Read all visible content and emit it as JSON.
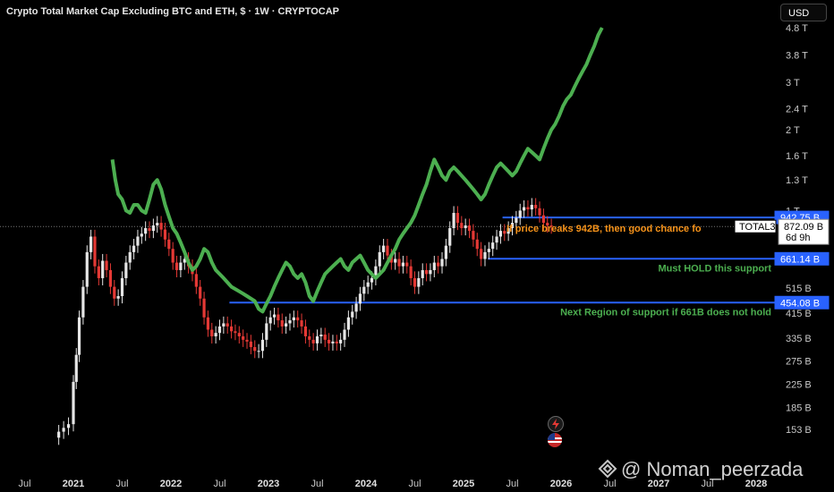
{
  "header": {
    "title": "Crypto Total Market Cap Excluding BTC and ETH, $ · 1W · CRYPTOCAP"
  },
  "currency_button": "USD",
  "watermark": "@ Noman_peerzada",
  "annotations": {
    "breakout_text": "If price breaks 942B, then good chance fo",
    "support_text": "Must HOLD this support",
    "next_support_text": "Next Region of support if 661B does not hold"
  },
  "price_tags": {
    "level_942": "942.75 B",
    "symbol": "TOTAL3",
    "price": "872.09 B",
    "countdown": "6d 9h",
    "level_661": "661.14 B",
    "level_454": "454.08 B"
  },
  "colors": {
    "background": "#000000",
    "overlay_green": "#4caf50",
    "candle_up": "#e6e6e6",
    "candle_down": "#e53935",
    "level_line": "#2962ff",
    "annotation_orange": "#f7931a",
    "annotation_green": "#4caf50"
  },
  "chart_data": {
    "type": "line",
    "title": "Crypto Total Market Cap Excluding BTC and ETH, $ · 1W · CRYPTOCAP",
    "y_scale": "log",
    "y_unit": "USD",
    "y_ticks": [
      "4.8 T",
      "3.8 T",
      "3 T",
      "2.4 T",
      "2 T",
      "1.6 T",
      "1.3 T",
      "1 T",
      "515 B",
      "415 B",
      "335 B",
      "275 B",
      "225 B",
      "185 B",
      "153 B"
    ],
    "y_tick_values": [
      4800,
      3800,
      3000,
      2400,
      2000,
      1600,
      1300,
      1000,
      515,
      415,
      335,
      275,
      225,
      185,
      153
    ],
    "x_ticks": [
      "Jul",
      "2021",
      "Jul",
      "2022",
      "Jul",
      "2023",
      "Jul",
      "2024",
      "Jul",
      "2025",
      "Jul",
      "2026",
      "Jul",
      "2027",
      "Jul",
      "2028"
    ],
    "x_tick_times": [
      2020.5,
      2021.0,
      2021.5,
      2022.0,
      2022.5,
      2023.0,
      2023.5,
      2024.0,
      2024.5,
      2025.0,
      2025.5,
      2026.0,
      2026.5,
      2027.0,
      2027.5,
      2028.0
    ],
    "horizontal_levels": [
      {
        "value": 942.75,
        "label": "942.75 B",
        "start": 2025.4
      },
      {
        "value": 661.14,
        "label": "661.14 B",
        "start": 2025.25
      },
      {
        "value": 454.08,
        "label": "454.08 B",
        "start": 2022.6
      }
    ],
    "last_price": 872.09,
    "series": [
      {
        "kind": "candles",
        "points": [
          [
            2020.85,
            150
          ],
          [
            2020.9,
            155
          ],
          [
            2020.95,
            160
          ],
          [
            2021.0,
            230
          ],
          [
            2021.03,
            290
          ],
          [
            2021.06,
            400
          ],
          [
            2021.1,
            520
          ],
          [
            2021.14,
            700
          ],
          [
            2021.18,
            800
          ],
          [
            2021.22,
            620
          ],
          [
            2021.26,
            560
          ],
          [
            2021.3,
            650
          ],
          [
            2021.34,
            600
          ],
          [
            2021.38,
            520
          ],
          [
            2021.42,
            470
          ],
          [
            2021.46,
            480
          ],
          [
            2021.5,
            560
          ],
          [
            2021.54,
            640
          ],
          [
            2021.58,
            700
          ],
          [
            2021.62,
            740
          ],
          [
            2021.66,
            800
          ],
          [
            2021.7,
            820
          ],
          [
            2021.74,
            860
          ],
          [
            2021.78,
            840
          ],
          [
            2021.82,
            880
          ],
          [
            2021.86,
            900
          ],
          [
            2021.9,
            850
          ],
          [
            2021.94,
            780
          ],
          [
            2021.98,
            720
          ],
          [
            2022.02,
            640
          ],
          [
            2022.06,
            600
          ],
          [
            2022.1,
            640
          ],
          [
            2022.14,
            660
          ],
          [
            2022.18,
            620
          ],
          [
            2022.22,
            580
          ],
          [
            2022.26,
            520
          ],
          [
            2022.3,
            470
          ],
          [
            2022.34,
            400
          ],
          [
            2022.38,
            360
          ],
          [
            2022.42,
            340
          ],
          [
            2022.46,
            350
          ],
          [
            2022.5,
            370
          ],
          [
            2022.54,
            380
          ],
          [
            2022.58,
            370
          ],
          [
            2022.62,
            355
          ],
          [
            2022.66,
            350
          ],
          [
            2022.7,
            340
          ],
          [
            2022.74,
            330
          ],
          [
            2022.78,
            325
          ],
          [
            2022.82,
            310
          ],
          [
            2022.86,
            300
          ],
          [
            2022.9,
            300
          ],
          [
            2022.94,
            330
          ],
          [
            2022.98,
            380
          ],
          [
            2023.02,
            400
          ],
          [
            2023.06,
            410
          ],
          [
            2023.1,
            390
          ],
          [
            2023.14,
            370
          ],
          [
            2023.18,
            380
          ],
          [
            2023.22,
            390
          ],
          [
            2023.26,
            400
          ],
          [
            2023.3,
            390
          ],
          [
            2023.34,
            370
          ],
          [
            2023.38,
            340
          ],
          [
            2023.42,
            330
          ],
          [
            2023.46,
            320
          ],
          [
            2023.5,
            340
          ],
          [
            2023.54,
            345
          ],
          [
            2023.58,
            330
          ],
          [
            2023.62,
            320
          ],
          [
            2023.66,
            325
          ],
          [
            2023.7,
            320
          ],
          [
            2023.74,
            330
          ],
          [
            2023.78,
            360
          ],
          [
            2023.82,
            400
          ],
          [
            2023.86,
            420
          ],
          [
            2023.9,
            450
          ],
          [
            2023.94,
            490
          ],
          [
            2023.98,
            520
          ],
          [
            2024.02,
            540
          ],
          [
            2024.06,
            560
          ],
          [
            2024.1,
            620
          ],
          [
            2024.14,
            700
          ],
          [
            2024.18,
            740
          ],
          [
            2024.22,
            680
          ],
          [
            2024.26,
            640
          ],
          [
            2024.3,
            660
          ],
          [
            2024.34,
            620
          ],
          [
            2024.38,
            640
          ],
          [
            2024.42,
            620
          ],
          [
            2024.46,
            560
          ],
          [
            2024.5,
            520
          ],
          [
            2024.54,
            560
          ],
          [
            2024.58,
            600
          ],
          [
            2024.62,
            580
          ],
          [
            2024.66,
            600
          ],
          [
            2024.7,
            640
          ],
          [
            2024.74,
            620
          ],
          [
            2024.78,
            660
          ],
          [
            2024.82,
            740
          ],
          [
            2024.86,
            860
          ],
          [
            2024.9,
            980
          ],
          [
            2024.94,
            900
          ],
          [
            2024.98,
            860
          ],
          [
            2025.02,
            880
          ],
          [
            2025.06,
            840
          ],
          [
            2025.1,
            780
          ],
          [
            2025.14,
            720
          ],
          [
            2025.18,
            660
          ],
          [
            2025.22,
            700
          ],
          [
            2025.26,
            720
          ],
          [
            2025.3,
            760
          ],
          [
            2025.34,
            800
          ],
          [
            2025.38,
            840
          ],
          [
            2025.42,
            820
          ],
          [
            2025.46,
            860
          ],
          [
            2025.5,
            900
          ],
          [
            2025.54,
            940
          ],
          [
            2025.58,
            1000
          ],
          [
            2025.62,
            1030
          ],
          [
            2025.66,
            1010
          ],
          [
            2025.7,
            1050
          ],
          [
            2025.74,
            1020
          ],
          [
            2025.78,
            960
          ],
          [
            2025.82,
            900
          ],
          [
            2025.86,
            880
          ],
          [
            2025.9,
            872
          ]
        ]
      },
      {
        "kind": "line",
        "name": "",
        "points": [
          [
            2021.4,
            1550
          ],
          [
            2021.43,
            1300
          ],
          [
            2021.46,
            1150
          ],
          [
            2021.5,
            1100
          ],
          [
            2021.54,
            1000
          ],
          [
            2021.58,
            980
          ],
          [
            2021.62,
            1050
          ],
          [
            2021.66,
            1050
          ],
          [
            2021.7,
            1000
          ],
          [
            2021.74,
            980
          ],
          [
            2021.78,
            1100
          ],
          [
            2021.82,
            1250
          ],
          [
            2021.86,
            1300
          ],
          [
            2021.9,
            1200
          ],
          [
            2021.94,
            1050
          ],
          [
            2021.98,
            950
          ],
          [
            2022.02,
            860
          ],
          [
            2022.06,
            820
          ],
          [
            2022.1,
            760
          ],
          [
            2022.14,
            700
          ],
          [
            2022.18,
            640
          ],
          [
            2022.22,
            600
          ],
          [
            2022.26,
            620
          ],
          [
            2022.3,
            660
          ],
          [
            2022.34,
            720
          ],
          [
            2022.38,
            700
          ],
          [
            2022.42,
            640
          ],
          [
            2022.46,
            600
          ],
          [
            2022.5,
            580
          ],
          [
            2022.54,
            560
          ],
          [
            2022.58,
            540
          ],
          [
            2022.62,
            520
          ],
          [
            2022.66,
            510
          ],
          [
            2022.7,
            500
          ],
          [
            2022.74,
            490
          ],
          [
            2022.78,
            480
          ],
          [
            2022.82,
            470
          ],
          [
            2022.86,
            460
          ],
          [
            2022.9,
            430
          ],
          [
            2022.94,
            420
          ],
          [
            2022.98,
            450
          ],
          [
            2023.02,
            480
          ],
          [
            2023.06,
            520
          ],
          [
            2023.1,
            560
          ],
          [
            2023.14,
            600
          ],
          [
            2023.18,
            640
          ],
          [
            2023.22,
            620
          ],
          [
            2023.26,
            580
          ],
          [
            2023.3,
            560
          ],
          [
            2023.34,
            580
          ],
          [
            2023.38,
            540
          ],
          [
            2023.42,
            480
          ],
          [
            2023.46,
            460
          ],
          [
            2023.5,
            500
          ],
          [
            2023.54,
            540
          ],
          [
            2023.58,
            580
          ],
          [
            2023.62,
            600
          ],
          [
            2023.66,
            620
          ],
          [
            2023.7,
            640
          ],
          [
            2023.74,
            660
          ],
          [
            2023.78,
            620
          ],
          [
            2023.82,
            600
          ],
          [
            2023.86,
            640
          ],
          [
            2023.9,
            660
          ],
          [
            2023.94,
            680
          ],
          [
            2023.98,
            640
          ],
          [
            2024.02,
            600
          ],
          [
            2024.06,
            580
          ],
          [
            2024.1,
            560
          ],
          [
            2024.14,
            580
          ],
          [
            2024.18,
            600
          ],
          [
            2024.22,
            640
          ],
          [
            2024.26,
            680
          ],
          [
            2024.3,
            720
          ],
          [
            2024.34,
            780
          ],
          [
            2024.38,
            820
          ],
          [
            2024.42,
            860
          ],
          [
            2024.46,
            900
          ],
          [
            2024.5,
            960
          ],
          [
            2024.54,
            1050
          ],
          [
            2024.58,
            1150
          ],
          [
            2024.62,
            1250
          ],
          [
            2024.66,
            1400
          ],
          [
            2024.7,
            1550
          ],
          [
            2024.74,
            1450
          ],
          [
            2024.78,
            1350
          ],
          [
            2024.82,
            1300
          ],
          [
            2024.86,
            1400
          ],
          [
            2024.9,
            1450
          ],
          [
            2024.94,
            1400
          ],
          [
            2024.98,
            1350
          ],
          [
            2025.02,
            1300
          ],
          [
            2025.06,
            1250
          ],
          [
            2025.1,
            1200
          ],
          [
            2025.14,
            1150
          ],
          [
            2025.18,
            1100
          ],
          [
            2025.22,
            1150
          ],
          [
            2025.26,
            1250
          ],
          [
            2025.3,
            1350
          ],
          [
            2025.34,
            1450
          ],
          [
            2025.38,
            1500
          ],
          [
            2025.42,
            1450
          ],
          [
            2025.46,
            1400
          ],
          [
            2025.5,
            1350
          ],
          [
            2025.54,
            1400
          ],
          [
            2025.58,
            1500
          ],
          [
            2025.62,
            1600
          ],
          [
            2025.66,
            1700
          ],
          [
            2025.7,
            1650
          ],
          [
            2025.74,
            1600
          ],
          [
            2025.78,
            1550
          ],
          [
            2025.82,
            1700
          ],
          [
            2025.86,
            1850
          ],
          [
            2025.9,
            2000
          ],
          [
            2025.94,
            2100
          ],
          [
            2025.98,
            2250
          ],
          [
            2026.02,
            2450
          ],
          [
            2026.06,
            2600
          ],
          [
            2026.1,
            2700
          ],
          [
            2026.14,
            2900
          ],
          [
            2026.18,
            3100
          ],
          [
            2026.22,
            3300
          ],
          [
            2026.26,
            3500
          ],
          [
            2026.3,
            3800
          ],
          [
            2026.34,
            4100
          ],
          [
            2026.38,
            4500
          ],
          [
            2026.42,
            4800
          ]
        ]
      }
    ]
  }
}
